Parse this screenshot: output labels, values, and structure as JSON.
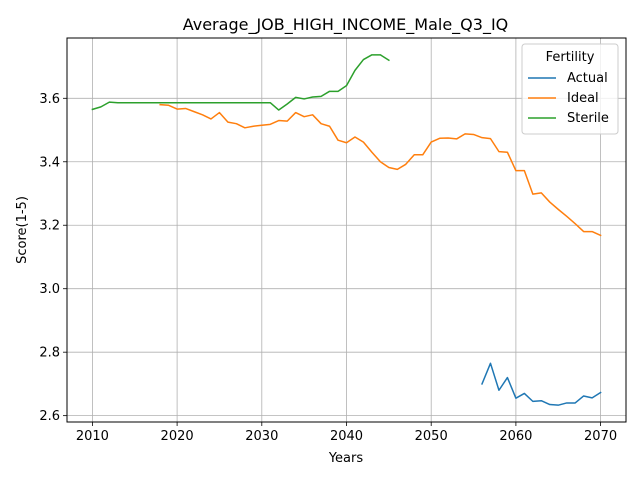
{
  "chart_data": {
    "type": "line",
    "title": "Average_JOB_HIGH_INCOME_Male_Q3_IQ",
    "xlabel": "Years",
    "ylabel": "Score(1-5)",
    "xlim": [
      2007,
      2073
    ],
    "ylim": [
      2.58,
      3.79
    ],
    "xticks": [
      "2010",
      "2020",
      "2030",
      "2040",
      "2050",
      "2060",
      "2070"
    ],
    "yticks": [
      "2.6",
      "2.8",
      "3.0",
      "3.2",
      "3.4",
      "3.6"
    ],
    "grid": true,
    "legend": {
      "title": "Fertility",
      "placement": "top-right"
    },
    "series": [
      {
        "name": "Actual",
        "color": "#1f77b4",
        "x": [
          2056,
          2057,
          2058,
          2059,
          2060,
          2061,
          2062,
          2063,
          2064,
          2065,
          2066,
          2067,
          2068,
          2069,
          2070
        ],
        "values": [
          2.7,
          2.765,
          2.68,
          2.72,
          2.655,
          2.67,
          2.645,
          2.647,
          2.635,
          2.633,
          2.64,
          2.64,
          2.662,
          2.656,
          2.673
        ]
      },
      {
        "name": "Ideal",
        "color": "#ff7f0e",
        "x": [
          2018,
          2019,
          2020,
          2021,
          2022,
          2023,
          2024,
          2025,
          2026,
          2027,
          2028,
          2029,
          2030,
          2031,
          2032,
          2033,
          2034,
          2035,
          2036,
          2037,
          2038,
          2039,
          2040,
          2041,
          2042,
          2043,
          2044,
          2045,
          2046,
          2047,
          2048,
          2049,
          2050,
          2051,
          2052,
          2053,
          2054,
          2055,
          2056,
          2057,
          2058,
          2059,
          2060,
          2061,
          2062,
          2063,
          2064,
          2065,
          2066,
          2067,
          2068,
          2069,
          2070
        ],
        "values": [
          3.58,
          3.578,
          3.566,
          3.568,
          3.558,
          3.548,
          3.535,
          3.555,
          3.525,
          3.52,
          3.507,
          3.512,
          3.515,
          3.518,
          3.53,
          3.528,
          3.555,
          3.542,
          3.548,
          3.52,
          3.512,
          3.468,
          3.46,
          3.478,
          3.462,
          3.43,
          3.4,
          3.382,
          3.376,
          3.392,
          3.422,
          3.422,
          3.462,
          3.474,
          3.475,
          3.472,
          3.488,
          3.486,
          3.476,
          3.473,
          3.432,
          3.43,
          3.372,
          3.372,
          3.298,
          3.302,
          3.273,
          3.25,
          3.228,
          3.205,
          3.18,
          3.18,
          3.168
        ]
      },
      {
        "name": "Sterile",
        "color": "#2ca02c",
        "x": [
          2010,
          2011,
          2012,
          2013,
          2014,
          2015,
          2016,
          2017,
          2018,
          2019,
          2020,
          2021,
          2022,
          2023,
          2024,
          2025,
          2026,
          2027,
          2028,
          2029,
          2030,
          2031,
          2032,
          2033,
          2034,
          2035,
          2036,
          2037,
          2038,
          2039,
          2040,
          2041,
          2042,
          2043,
          2044,
          2045
        ],
        "values": [
          3.565,
          3.573,
          3.588,
          3.586,
          3.586,
          3.586,
          3.586,
          3.586,
          3.586,
          3.586,
          3.586,
          3.586,
          3.586,
          3.586,
          3.586,
          3.586,
          3.586,
          3.586,
          3.586,
          3.586,
          3.586,
          3.586,
          3.563,
          3.582,
          3.603,
          3.598,
          3.604,
          3.606,
          3.622,
          3.622,
          3.64,
          3.688,
          3.722,
          3.737,
          3.737,
          3.72
        ]
      }
    ]
  }
}
